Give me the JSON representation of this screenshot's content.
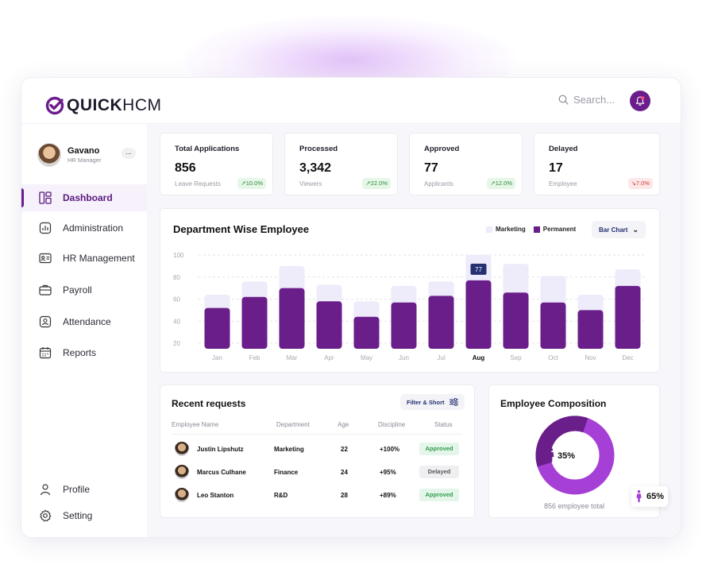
{
  "brand": {
    "name_bold": "QUICK",
    "name_light": "HCM"
  },
  "search": {
    "placeholder": "Search..."
  },
  "user": {
    "name": "Gavano",
    "role": "HR Manager",
    "more": "..."
  },
  "nav": {
    "items": [
      {
        "label": "Dashboard",
        "icon": "dashboard-icon",
        "active": true
      },
      {
        "label": "Administration",
        "icon": "chart-icon"
      },
      {
        "label": "HR Management",
        "icon": "id-card-icon"
      },
      {
        "label": "Payroll",
        "icon": "briefcase-icon"
      },
      {
        "label": "Attendance",
        "icon": "user-square-icon"
      },
      {
        "label": "Reports",
        "icon": "calendar-icon"
      }
    ],
    "bottom": [
      {
        "label": "Profile",
        "icon": "user-icon"
      },
      {
        "label": "Setting",
        "icon": "gear-icon"
      }
    ]
  },
  "stats": [
    {
      "title": "Total Applications",
      "value": "856",
      "sub": "Leave Requests",
      "change": "10.0%",
      "trend": "up"
    },
    {
      "title": "Processed",
      "value": "3,342",
      "sub": "Viewers",
      "change": "22.0%",
      "trend": "up"
    },
    {
      "title": "Approved",
      "value": "77",
      "sub": "Applicants",
      "change": "12.0%",
      "trend": "up"
    },
    {
      "title": "Delayed",
      "value": "17",
      "sub": "Employee",
      "change": "7.0%",
      "trend": "down"
    }
  ],
  "chart_panel": {
    "select_label": "Bar Chart"
  },
  "chart_data": {
    "type": "bar",
    "title": "Department Wise Employee",
    "categories": [
      "Jan",
      "Feb",
      "Mar",
      "Apr",
      "May",
      "Jun",
      "Jul",
      "Aug",
      "Sep",
      "Oct",
      "Nov",
      "Dec"
    ],
    "highlight_category": "Aug",
    "series": [
      {
        "name": "Marketing",
        "values": [
          64,
          76,
          90,
          73,
          58,
          72,
          76,
          100,
          92,
          81,
          64,
          87
        ],
        "color": "#eeebfa"
      },
      {
        "name": "Permanent",
        "values": [
          52,
          62,
          70,
          58,
          44,
          57,
          63,
          77,
          66,
          57,
          50,
          72
        ],
        "color": "#6a1e8a"
      }
    ],
    "annotation": {
      "category": "Aug",
      "text": "77"
    },
    "y_ticks": [
      100,
      80,
      60,
      40,
      20
    ],
    "ylim": [
      15,
      100
    ],
    "grid": true,
    "legend_position": "top-right"
  },
  "requests": {
    "title": "Recent requests",
    "filter_label": "Filter & Short",
    "headers": [
      "Employee Name",
      "Department",
      "Age",
      "Discipline",
      "Status"
    ],
    "rows": [
      {
        "name": "Justin Lipshutz",
        "department": "Marketing",
        "age": "22",
        "discipline": "+100%",
        "status": "Approved"
      },
      {
        "name": "Marcus Culhane",
        "department": "Finance",
        "age": "24",
        "discipline": "+95%",
        "status": "Delayed"
      },
      {
        "name": "Leo Stanton",
        "department": "R&D",
        "age": "28",
        "discipline": "+89%",
        "status": "Approved"
      }
    ]
  },
  "composition": {
    "title": "Employee Composition",
    "segments": [
      {
        "label": "35%",
        "value": 35,
        "color": "#6a1e8a"
      },
      {
        "label": "65%",
        "value": 65,
        "color": "#a63fd6"
      }
    ],
    "total_text": "856 employee total"
  },
  "colors": {
    "accent": "#6b1d8c",
    "accent_light": "#a63fd6",
    "bar_bg": "#eeebfa"
  }
}
